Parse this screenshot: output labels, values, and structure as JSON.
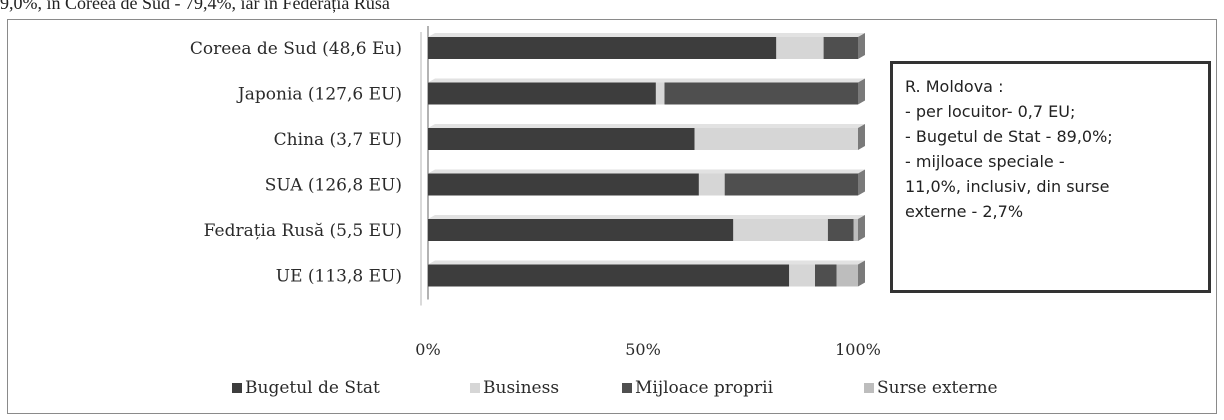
{
  "top_text": "9,0%, în Coreea de Sud - 79,4%, iar în Federația Rusă",
  "note": {
    "lines": [
      "R. Moldova :",
      "- per locuitor- 0,7 EU;",
      "- Bugetul de Stat - 89,0%;",
      "- mijloace speciale -",
      "11,0%, inclusiv,  din surse",
      "externe -  2,7%"
    ]
  },
  "colors": {
    "bugetul_de_stat": "#3d3d3d",
    "business": "#d6d6d6",
    "mijloace_proprii": "#4f4f4f",
    "surse_externe": "#bdbdbd"
  },
  "chart_data": {
    "type": "bar",
    "orientation": "horizontal",
    "stacked": "100%",
    "categories": [
      "Coreea de Sud (48,6 Eu)",
      "Japonia (127,6 EU)",
      "China (3,7 EU)",
      "SUA (126,8 EU)",
      "Fedrația Rusă (5,5 EU)",
      "UE  (113,8 EU)"
    ],
    "series": [
      {
        "name": "Bugetul de Stat",
        "values": [
          81,
          53,
          62,
          63,
          71,
          84
        ]
      },
      {
        "name": "Business",
        "values": [
          11,
          2,
          38,
          6,
          22,
          6
        ]
      },
      {
        "name": "Mijloace proprii",
        "values": [
          8,
          45,
          0,
          31,
          6,
          5
        ]
      },
      {
        "name": "Surse externe",
        "values": [
          0,
          0,
          0,
          0,
          1,
          5
        ]
      }
    ],
    "xticks": [
      "0%",
      "50%",
      "100%"
    ],
    "xlim": [
      0,
      100
    ],
    "legend": "bottom",
    "grid": false
  }
}
